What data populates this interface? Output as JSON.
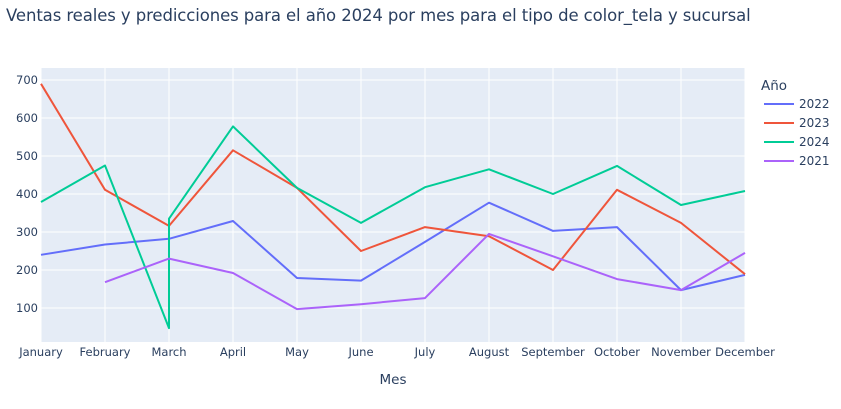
{
  "chart_data": {
    "type": "line",
    "title": "Ventas reales y predicciones para el año 2024 por mes para el tipo de color_tela y sucursal",
    "xlabel": "Mes",
    "ylabel": "",
    "ylim": [
      20,
      720
    ],
    "yticks": [
      100,
      200,
      300,
      400,
      500,
      600,
      700
    ],
    "categories": [
      "January",
      "February",
      "March",
      "April",
      "May",
      "June",
      "July",
      "August",
      "September",
      "October",
      "November",
      "December"
    ],
    "legend": {
      "title": "Año",
      "position": "right"
    },
    "grid": true,
    "series": [
      {
        "name": "2022",
        "color": "#636efa",
        "points": [
          [
            "January",
            240
          ],
          [
            "February",
            267
          ],
          [
            "March",
            282
          ],
          [
            "April",
            329
          ],
          [
            "May",
            179
          ],
          [
            "June",
            172
          ],
          [
            "July",
            274
          ],
          [
            "August",
            377
          ],
          [
            "September",
            303
          ],
          [
            "October",
            313
          ],
          [
            "November",
            147
          ],
          [
            "December",
            187
          ]
        ]
      },
      {
        "name": "2023",
        "color": "#EF553B",
        "points": [
          [
            "January",
            690
          ],
          [
            "February",
            411
          ],
          [
            "March",
            316
          ],
          [
            "April",
            515
          ],
          [
            "May",
            416
          ],
          [
            "June",
            250
          ],
          [
            "July",
            313
          ],
          [
            "August",
            289
          ],
          [
            "September",
            200
          ],
          [
            "October",
            411
          ],
          [
            "November",
            324
          ],
          [
            "December",
            189
          ]
        ]
      },
      {
        "name": "2024",
        "color": "#00cc96",
        "points": [
          [
            "January",
            379
          ],
          [
            "February",
            475
          ],
          [
            "March",
            47
          ],
          [
            "March",
            335
          ],
          [
            "April",
            578
          ],
          [
            "May",
            416
          ],
          [
            "June",
            324
          ],
          [
            "July",
            418
          ],
          [
            "August",
            465
          ],
          [
            "September",
            400
          ],
          [
            "October",
            474
          ],
          [
            "November",
            371
          ],
          [
            "December",
            408
          ]
        ]
      },
      {
        "name": "2021",
        "color": "#ab63fa",
        "points": [
          [
            "February",
            168
          ],
          [
            "March",
            230
          ],
          [
            "April",
            192
          ],
          [
            "May",
            97
          ],
          [
            "June",
            110
          ],
          [
            "July",
            126
          ],
          [
            "August",
            295
          ],
          [
            "September",
            236
          ],
          [
            "October",
            176
          ],
          [
            "November",
            147
          ],
          [
            "December",
            245
          ]
        ]
      }
    ]
  }
}
